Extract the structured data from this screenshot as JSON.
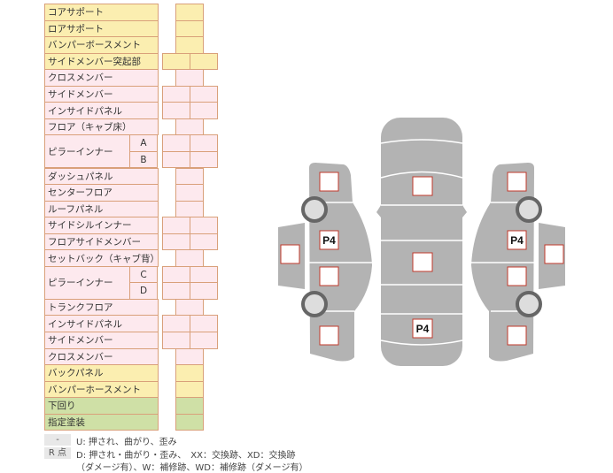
{
  "rows": [
    {
      "label": "コアサポート",
      "color": "y",
      "cols": 1
    },
    {
      "label": "ロアサポート",
      "color": "y",
      "cols": 1
    },
    {
      "label": "バンパーボースメント",
      "color": "y",
      "cols": 1
    },
    {
      "label": "サイドメンバー突起部",
      "color": "y",
      "cols": 2
    },
    {
      "label": "クロスメンバー",
      "color": "p",
      "cols": 1
    },
    {
      "label": "サイドメンバー",
      "color": "p",
      "cols": 2
    },
    {
      "label": "インサイドパネル",
      "color": "p",
      "cols": 2
    },
    {
      "label": "フロア（キャブ床）",
      "color": "p",
      "cols": 1
    },
    {
      "label": "ピラーインナー",
      "sub": "A",
      "color": "p",
      "cols": 2
    },
    {
      "label": "",
      "sub": "B",
      "color": "p",
      "cols": 2
    },
    {
      "label": "ダッシュパネル",
      "color": "p",
      "cols": 1
    },
    {
      "label": "センターフロア",
      "color": "p",
      "cols": 1
    },
    {
      "label": "ルーフパネル",
      "color": "p",
      "cols": 1
    },
    {
      "label": "サイドシルインナー",
      "color": "p",
      "cols": 2
    },
    {
      "label": "フロアサイドメンバー",
      "color": "p",
      "cols": 2
    },
    {
      "label": "セットバック（キャブ背）",
      "color": "p",
      "cols": 1
    },
    {
      "label": "ピラーインナー",
      "sub": "C",
      "color": "p",
      "cols": 2
    },
    {
      "label": "",
      "sub": "D",
      "color": "p",
      "cols": 2
    },
    {
      "label": "トランクフロア",
      "color": "p",
      "cols": 1
    },
    {
      "label": "インサイドパネル",
      "color": "p",
      "cols": 2
    },
    {
      "label": "サイドメンバー",
      "color": "p",
      "cols": 2
    },
    {
      "label": "クロスメンバー",
      "color": "p",
      "cols": 1
    },
    {
      "label": "バックパネル",
      "color": "y",
      "cols": 1
    },
    {
      "label": "バンパーホースメント",
      "color": "y",
      "cols": 1
    },
    {
      "label": "下回り",
      "color": "g",
      "cols": 1
    },
    {
      "label": "指定塗装",
      "color": "g",
      "cols": 1
    }
  ],
  "legend": {
    "key1": "-",
    "text1": "U: 押され、曲がり、歪み",
    "key2": "R 点",
    "text2": "D: 押され・曲がり・歪み、　XX：交換跡、XD：交換跡",
    "text3": "（ダメージ有）、W：補修跡、WD：補修跡（ダメージ有）"
  },
  "diagram": {
    "marks": [
      "P4",
      "P4",
      "P4"
    ]
  },
  "colors": {
    "yellow": "#fbeeb0",
    "pink": "#fde9ee",
    "green": "#cfe0a6",
    "border": "#d9a07a",
    "body": "#b3b3b3",
    "box_border": "#c0392b"
  }
}
